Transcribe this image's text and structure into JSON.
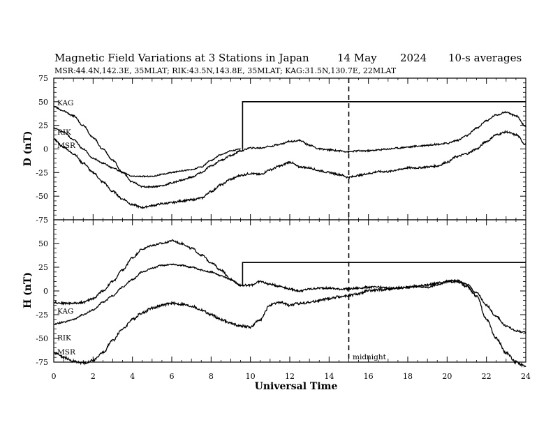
{
  "header": {
    "title": "Magnetic Field Variations at 3 Stations in Japan",
    "date": "14 May",
    "year": "2024",
    "averaging": "10-s averages",
    "stations_line": "MSR:44.4N,142.3E, 35MLAT;  RIK:43.5N,143.8E, 35MLAT;  KAG:31.5N,130.7E, 22MLAT"
  },
  "annotations": {
    "midnight": "midnight"
  },
  "chart_data": [
    {
      "type": "line",
      "ylabel": "D (nT)",
      "xlabel": "",
      "xlim": [
        0,
        24
      ],
      "ylim": [
        -75,
        75
      ],
      "yticks": [
        75,
        50,
        25,
        0,
        -25,
        -50,
        -75
      ],
      "xticks": [
        0,
        2,
        4,
        6,
        8,
        10,
        12,
        14,
        16,
        18,
        20,
        22,
        24
      ],
      "grid": false,
      "midnight_ut": 15,
      "scale_bar": {
        "from_x": 9.6,
        "y_start": 0,
        "y_end": 50,
        "to_x": 24
      },
      "series": [
        {
          "name": "KAG",
          "noise": 0.8,
          "x": [
            0,
            0.5,
            1,
            1.5,
            2,
            2.5,
            3,
            3.5,
            4,
            4.5,
            5,
            5.5,
            6,
            6.5,
            7,
            7.5,
            8,
            8.5,
            9,
            9.5,
            10,
            10.5,
            11,
            11.5,
            12,
            12.5,
            13,
            13.5,
            14,
            14.5,
            15,
            15.5,
            16,
            16.5,
            17,
            17.5,
            18,
            18.5,
            19,
            19.5,
            20,
            20.5,
            21,
            21.5,
            22,
            22.5,
            23,
            23.5,
            24
          ],
          "y": [
            45,
            40,
            35,
            25,
            12,
            0,
            -12,
            -25,
            -35,
            -40,
            -40,
            -39,
            -36,
            -33,
            -30,
            -25,
            -18,
            -12,
            -7,
            -2,
            1,
            1,
            3,
            5,
            8,
            9,
            4,
            0,
            -1,
            -2,
            -3,
            -2,
            -2,
            -1,
            0,
            1,
            2,
            3,
            4,
            5,
            6,
            9,
            14,
            22,
            30,
            36,
            39,
            35,
            24
          ]
        },
        {
          "name": "RIK",
          "noise": 0.6,
          "x": [
            0,
            0.5,
            1,
            1.5,
            2,
            2.5,
            3,
            3.5,
            4,
            4.5,
            5,
            5.5,
            6,
            6.5,
            7,
            7.5,
            8,
            8.5,
            9,
            9.5
          ],
          "y": [
            22,
            18,
            10,
            0,
            -10,
            -15,
            -20,
            -25,
            -29,
            -29,
            -29,
            -27,
            -25,
            -23,
            -22,
            -19,
            -12,
            -6,
            -2,
            0
          ]
        },
        {
          "name": "MSR",
          "noise": 1.0,
          "x": [
            0,
            0.5,
            1,
            1.5,
            2,
            2.5,
            3,
            3.5,
            4,
            4.5,
            5,
            5.5,
            6,
            6.5,
            7,
            7.5,
            8,
            8.5,
            9,
            9.5,
            10,
            10.5,
            11,
            11.5,
            12,
            12.5,
            13,
            13.5,
            14,
            14.5,
            15,
            15.5,
            16,
            16.5,
            17,
            17.5,
            18,
            18.5,
            19,
            19.5,
            20,
            20.5,
            21,
            21.5,
            22,
            22.5,
            23,
            23.5,
            24
          ],
          "y": [
            10,
            2,
            -5,
            -15,
            -25,
            -35,
            -45,
            -53,
            -59,
            -62,
            -60,
            -58,
            -57,
            -55,
            -54,
            -52,
            -45,
            -38,
            -32,
            -28,
            -26,
            -27,
            -22,
            -18,
            -14,
            -19,
            -20,
            -23,
            -25,
            -27,
            -30,
            -28,
            -26,
            -24,
            -24,
            -22,
            -20,
            -20,
            -19,
            -18,
            -14,
            -8,
            -5,
            0,
            8,
            15,
            18,
            15,
            5
          ]
        }
      ]
    },
    {
      "type": "line",
      "ylabel": "H (nT)",
      "xlabel": "Universal Time",
      "xlim": [
        0,
        24
      ],
      "ylim": [
        -75,
        75
      ],
      "yticks": [
        75,
        50,
        25,
        0,
        -25,
        -50,
        -75
      ],
      "xticks": [
        0,
        2,
        4,
        6,
        8,
        10,
        12,
        14,
        16,
        18,
        20,
        22,
        24
      ],
      "grid": false,
      "midnight_ut": 15,
      "scale_bar": {
        "from_x": 9.6,
        "y_start": 5,
        "y_end": 30,
        "to_x": 24
      },
      "series": [
        {
          "name": "KAG",
          "noise": 1.0,
          "x": [
            0,
            0.5,
            1,
            1.5,
            2,
            2.5,
            3,
            3.5,
            4,
            4.5,
            5,
            5.5,
            6,
            6.5,
            7,
            7.5,
            8,
            8.5,
            9,
            9.5,
            10,
            10.5,
            11,
            11.5,
            12,
            12.5,
            13,
            13.5,
            14,
            14.5,
            15,
            15.5,
            16,
            16.5,
            17,
            17.5,
            18,
            18.5,
            19,
            19.5,
            20,
            20.5,
            21,
            21.5,
            22,
            22.5,
            23,
            23.5,
            24
          ],
          "y": [
            -12,
            -13,
            -13,
            -12,
            -8,
            0,
            10,
            22,
            35,
            44,
            48,
            50,
            53,
            50,
            45,
            38,
            30,
            22,
            12,
            6,
            6,
            10,
            7,
            5,
            2,
            0,
            2,
            3,
            3,
            2,
            2,
            3,
            4,
            4,
            3,
            3,
            4,
            5,
            4,
            6,
            10,
            11,
            7,
            -2,
            -15,
            -27,
            -37,
            -42,
            -44
          ]
        },
        {
          "name": "RIK",
          "noise": 0.7,
          "x": [
            0,
            0.5,
            1,
            1.5,
            2,
            2.5,
            3,
            3.5,
            4,
            4.5,
            5,
            5.5,
            6,
            6.5,
            7,
            7.5,
            8,
            8.5,
            9,
            9.5
          ],
          "y": [
            -35,
            -33,
            -30,
            -25,
            -20,
            -12,
            -5,
            4,
            12,
            20,
            24,
            27,
            28,
            27,
            25,
            22,
            20,
            16,
            12,
            6
          ]
        },
        {
          "name": "MSR",
          "noise": 1.3,
          "x": [
            0,
            0.5,
            1,
            1.5,
            2,
            2.5,
            3,
            3.5,
            4,
            4.5,
            5,
            5.5,
            6,
            6.5,
            7,
            7.5,
            8,
            8.5,
            9,
            9.5,
            10,
            10.5,
            11,
            11.5,
            12,
            12.5,
            13,
            13.5,
            14,
            14.5,
            15,
            15.5,
            16,
            16.5,
            17,
            17.5,
            18,
            18.5,
            19,
            19.5,
            20,
            20.5,
            21,
            21.5,
            22,
            22.5,
            23,
            23.5,
            24
          ],
          "y": [
            -65,
            -70,
            -74,
            -76,
            -73,
            -65,
            -52,
            -40,
            -30,
            -23,
            -18,
            -15,
            -13,
            -14,
            -16,
            -20,
            -25,
            -30,
            -34,
            -37,
            -38,
            -30,
            -15,
            -12,
            -15,
            -13,
            -12,
            -10,
            -8,
            -6,
            -5,
            -3,
            0,
            1,
            2,
            3,
            4,
            5,
            6,
            8,
            10,
            10,
            5,
            -5,
            -30,
            -50,
            -65,
            -75,
            -80
          ]
        }
      ]
    }
  ]
}
